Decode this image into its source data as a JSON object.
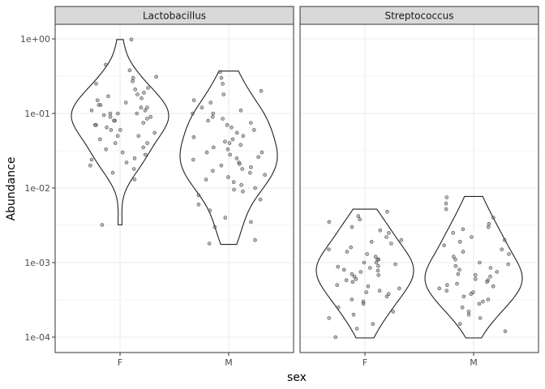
{
  "chart_data": {
    "type": "violin-jitter",
    "facet_var": "genus",
    "facets": [
      "Lactobacillus",
      "Streptococcus"
    ],
    "xlabel": "sex",
    "ylabel": "Abundance",
    "categories": [
      "F",
      "M"
    ],
    "y_scale": "log10",
    "ylim": [
      0.0001,
      1.0
    ],
    "y_ticks": [
      1.0,
      0.1,
      0.01,
      0.001,
      0.0001
    ],
    "y_tick_labels": [
      "1e+00",
      "1e-01",
      "1e-02",
      "1e-03",
      "1e-04"
    ],
    "grid": true,
    "colors": {
      "point_fill": "#7f7f7f",
      "point_stroke": "#1a1a1a",
      "violin_stroke": "#222222",
      "strip_bg": "#d9d9d9",
      "panel_border": "#333333",
      "grid": "#ebebeb"
    },
    "groups": [
      {
        "facet": "Lactobacillus",
        "sex": "F",
        "range": [
          0.0032,
          0.98
        ],
        "median": 0.09,
        "points": [
          0.98,
          0.45,
          0.38,
          0.31,
          0.3,
          0.27,
          0.25,
          0.22,
          0.21,
          0.19,
          0.18,
          0.17,
          0.16,
          0.15,
          0.14,
          0.13,
          0.13,
          0.12,
          0.12,
          0.11,
          0.11,
          0.1,
          0.1,
          0.1,
          0.095,
          0.09,
          0.09,
          0.085,
          0.08,
          0.08,
          0.075,
          0.07,
          0.07,
          0.065,
          0.06,
          0.06,
          0.055,
          0.05,
          0.05,
          0.045,
          0.04,
          0.04,
          0.035,
          0.033,
          0.03,
          0.028,
          0.025,
          0.024,
          0.022,
          0.02,
          0.018,
          0.016,
          0.013,
          0.0032
        ]
      },
      {
        "facet": "Lactobacillus",
        "sex": "M",
        "range": [
          0.00175,
          0.37
        ],
        "median": 0.03,
        "points": [
          0.36,
          0.3,
          0.25,
          0.2,
          0.18,
          0.15,
          0.14,
          0.12,
          0.11,
          0.1,
          0.1,
          0.09,
          0.085,
          0.08,
          0.075,
          0.07,
          0.065,
          0.06,
          0.055,
          0.05,
          0.048,
          0.045,
          0.042,
          0.04,
          0.038,
          0.035,
          0.033,
          0.03,
          0.03,
          0.028,
          0.026,
          0.025,
          0.024,
          0.022,
          0.021,
          0.02,
          0.019,
          0.018,
          0.017,
          0.016,
          0.015,
          0.014,
          0.013,
          0.012,
          0.011,
          0.01,
          0.0095,
          0.009,
          0.008,
          0.007,
          0.006,
          0.005,
          0.004,
          0.0035,
          0.003,
          0.002,
          0.0018
        ]
      },
      {
        "facet": "Streptococcus",
        "sex": "F",
        "range": [
          9.75e-05,
          0.0052
        ],
        "median": 0.0009,
        "points": [
          0.0048,
          0.0042,
          0.0038,
          0.0035,
          0.003,
          0.0027,
          0.0025,
          0.0022,
          0.002,
          0.0019,
          0.0018,
          0.0016,
          0.0015,
          0.0014,
          0.0013,
          0.0012,
          0.0011,
          0.0011,
          0.001,
          0.001,
          0.00095,
          0.0009,
          0.00088,
          0.00085,
          0.0008,
          0.00078,
          0.00075,
          0.0007,
          0.00068,
          0.00065,
          0.0006,
          0.00058,
          0.00055,
          0.0005,
          0.00048,
          0.00045,
          0.00042,
          0.0004,
          0.00038,
          0.00035,
          0.00032,
          0.0003,
          0.00028,
          0.00025,
          0.00022,
          0.0002,
          0.00018,
          0.00015,
          0.00013,
          0.0001
        ]
      },
      {
        "facet": "Streptococcus",
        "sex": "M",
        "range": [
          9.75e-05,
          0.0077
        ],
        "median": 0.0006,
        "points": [
          0.0075,
          0.0062,
          0.0052,
          0.004,
          0.0033,
          0.003,
          0.0028,
          0.0025,
          0.0022,
          0.002,
          0.0019,
          0.0017,
          0.0015,
          0.0014,
          0.0013,
          0.0012,
          0.0011,
          0.001,
          0.00095,
          0.0009,
          0.00085,
          0.0008,
          0.00075,
          0.0007,
          0.00068,
          0.00065,
          0.0006,
          0.00058,
          0.00055,
          0.00052,
          0.0005,
          0.00048,
          0.00045,
          0.00042,
          0.0004,
          0.00038,
          0.00035,
          0.00032,
          0.0003,
          0.00028,
          0.00025,
          0.00022,
          0.0002,
          0.00018,
          0.00015,
          0.00012
        ]
      }
    ]
  }
}
